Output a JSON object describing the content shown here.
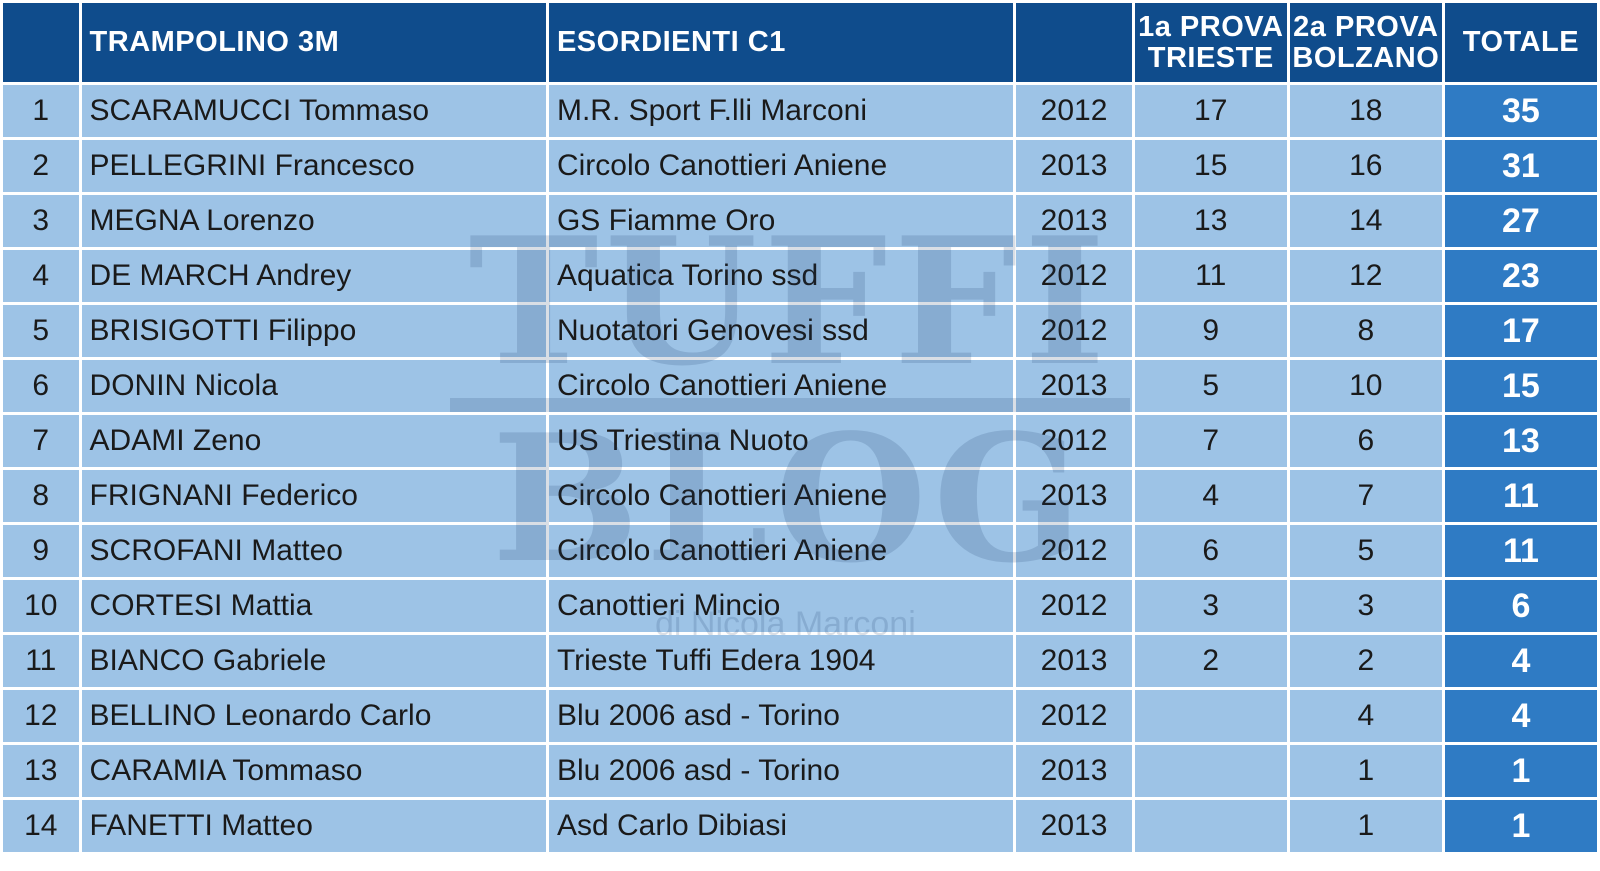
{
  "header": {
    "rank": "",
    "event": "TRAMPOLINO 3M",
    "category": "ESORDIENTI C1",
    "year": "",
    "round1_line1": "1a PROVA",
    "round1_line2": "TRIESTE",
    "round2_line1": "2a PROVA",
    "round2_line2": "BOLZANO",
    "total": "TOTALE"
  },
  "rows": [
    {
      "rank": "1",
      "name": "SCARAMUCCI Tommaso",
      "club": "M.R. Sport F.lli Marconi",
      "year": "2012",
      "trieste": "17",
      "bolzano": "18",
      "total": "35"
    },
    {
      "rank": "2",
      "name": "PELLEGRINI Francesco",
      "club": "Circolo Canottieri Aniene",
      "year": "2013",
      "trieste": "15",
      "bolzano": "16",
      "total": "31"
    },
    {
      "rank": "3",
      "name": "MEGNA Lorenzo",
      "club": "GS Fiamme Oro",
      "year": "2013",
      "trieste": "13",
      "bolzano": "14",
      "total": "27"
    },
    {
      "rank": "4",
      "name": "DE MARCH Andrey",
      "club": "Aquatica Torino ssd",
      "year": "2012",
      "trieste": "11",
      "bolzano": "12",
      "total": "23"
    },
    {
      "rank": "5",
      "name": "BRISIGOTTI Filippo",
      "club": "Nuotatori Genovesi ssd",
      "year": "2012",
      "trieste": "9",
      "bolzano": "8",
      "total": "17"
    },
    {
      "rank": "6",
      "name": "DONIN Nicola",
      "club": "Circolo Canottieri Aniene",
      "year": "2013",
      "trieste": "5",
      "bolzano": "10",
      "total": "15"
    },
    {
      "rank": "7",
      "name": "ADAMI Zeno",
      "club": "US Triestina Nuoto",
      "year": "2012",
      "trieste": "7",
      "bolzano": "6",
      "total": "13"
    },
    {
      "rank": "8",
      "name": "FRIGNANI Federico",
      "club": "Circolo Canottieri Aniene",
      "year": "2013",
      "trieste": "4",
      "bolzano": "7",
      "total": "11"
    },
    {
      "rank": "9",
      "name": "SCROFANI Matteo",
      "club": "Circolo Canottieri Aniene",
      "year": "2012",
      "trieste": "6",
      "bolzano": "5",
      "total": "11"
    },
    {
      "rank": "10",
      "name": "CORTESI Mattia",
      "club": "Canottieri Mincio",
      "year": "2012",
      "trieste": "3",
      "bolzano": "3",
      "total": "6"
    },
    {
      "rank": "11",
      "name": "BIANCO Gabriele",
      "club": "Trieste Tuffi Edera 1904",
      "year": "2013",
      "trieste": "2",
      "bolzano": "2",
      "total": "4"
    },
    {
      "rank": "12",
      "name": "BELLINO Leonardo Carlo",
      "club": "Blu 2006 asd - Torino",
      "year": "2012",
      "trieste": "",
      "bolzano": "4",
      "total": "4"
    },
    {
      "rank": "13",
      "name": "CARAMIA Tommaso",
      "club": "Blu 2006 asd - Torino",
      "year": "2013",
      "trieste": "",
      "bolzano": "1",
      "total": "1"
    },
    {
      "rank": "14",
      "name": "FANETTI Matteo",
      "club": "Asd Carlo Dibiasi",
      "year": "2013",
      "trieste": "",
      "bolzano": "1",
      "total": "1"
    }
  ],
  "watermark": {
    "line1": "TUFFI",
    "line2": "BLOG",
    "sub": "di Nicola Marconi"
  },
  "colors": {
    "header_bg": "#0f4c8c",
    "cell_bg": "#9dc3e6",
    "total_bg": "#2f7bc4"
  }
}
